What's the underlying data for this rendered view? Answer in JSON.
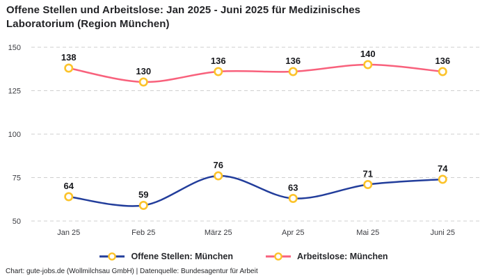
{
  "title": "Offene Stellen und Arbeitslose: Jan 2025 - Juni 2025 für Medizinisches Laboratorium (Region München)",
  "footer": "Chart: gute-jobs.de (Wollmilchsau GmbH) | Datenquelle: Bundesagentur für Arbeit",
  "colors": {
    "series_open_positions": "#223d9b",
    "series_unemployed": "#f8617c",
    "marker_ring": "#fcc32a",
    "marker_fill": "#ffffff",
    "gridline": "#cfcfcf",
    "tick_label": "#3a3b40",
    "data_label": "#17181c"
  },
  "chart_data": {
    "type": "line",
    "categories": [
      "Jan 25",
      "Feb 25",
      "März 25",
      "Apr 25",
      "Mai 25",
      "Juni 25"
    ],
    "series": [
      {
        "name": "Offene Stellen: München",
        "values": [
          64,
          59,
          76,
          63,
          71,
          74
        ],
        "color": "#223d9b"
      },
      {
        "name": "Arbeitslose: München",
        "values": [
          138,
          130,
          136,
          136,
          140,
          136
        ],
        "color": "#f8617c"
      }
    ],
    "title": "Offene Stellen und Arbeitslose: Jan 2025 - Juni 2025 für Medizinisches Laboratorium (Region München)",
    "xlabel": "",
    "ylabel": "",
    "ylim": [
      50,
      150
    ],
    "yticks": [
      50,
      75,
      100,
      125,
      150
    ],
    "grid": "horizontal-dashed",
    "smooth": true,
    "markers": "open-circle-gold",
    "data_labels": true,
    "legend_position": "bottom"
  }
}
